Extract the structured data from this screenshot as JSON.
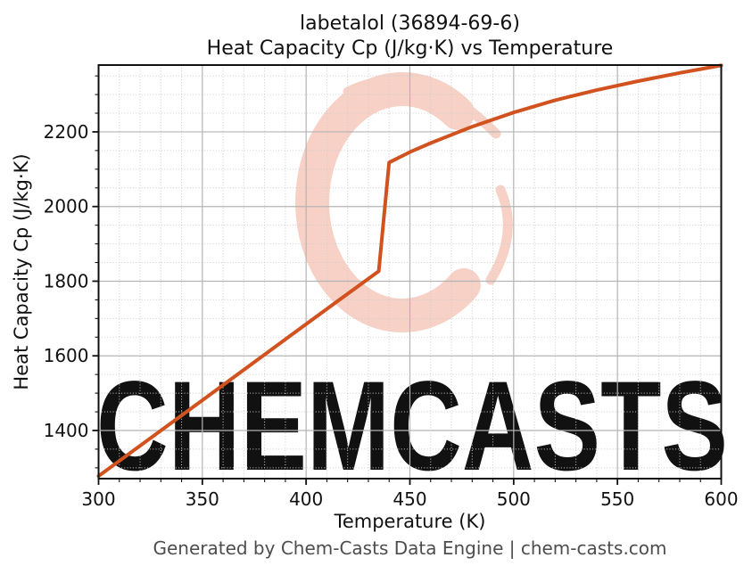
{
  "title": {
    "line1": "labetalol (36894-69-6)",
    "line2": "Heat Capacity Cp (J/kg·K) vs Temperature"
  },
  "axes": {
    "x_label": "Temperature (K)",
    "y_label": "Heat Capacity Cp (J/kg·K)"
  },
  "footer": {
    "text": "Generated by Chem-Casts Data Engine | chem-casts.com"
  },
  "watermark": {
    "text": "CHEMCASTS",
    "emblem": "brush-stroke-C",
    "color": "#f7d1c6"
  },
  "chart_data": {
    "type": "line",
    "title": "labetalol (36894-69-6)\nHeat Capacity Cp (J/kg·K) vs Temperature",
    "xlabel": "Temperature (K)",
    "ylabel": "Heat Capacity Cp (J/kg·K)",
    "xlim": [
      300,
      600
    ],
    "ylim": [
      1271,
      2379
    ],
    "x_ticks": [
      300,
      350,
      400,
      450,
      500,
      550,
      600
    ],
    "y_ticks": [
      1400,
      1600,
      1800,
      2000,
      2200
    ],
    "x_minor_step": 10,
    "y_minor_step": 50,
    "grid": {
      "major": true,
      "minor": true
    },
    "legend": "none",
    "series": [
      {
        "name": "Heat Capacity Cp (J/kg·K)",
        "x": [
          300,
          350,
          400,
          435,
          440,
          450,
          460,
          480,
          500,
          520,
          540,
          560,
          580,
          600
        ],
        "y": [
          1278,
          1481,
          1685,
          1827,
          2118,
          2146,
          2170,
          2214,
          2252,
          2285,
          2312,
          2336,
          2358,
          2378
        ]
      }
    ],
    "colors": {
      "line": "#d2521f",
      "major_grid": "#b4b4b4",
      "minor_grid": "#cccccc",
      "spine": "#111111",
      "footer": "#4d4d4d",
      "watermark": "#f7d1c6"
    }
  }
}
